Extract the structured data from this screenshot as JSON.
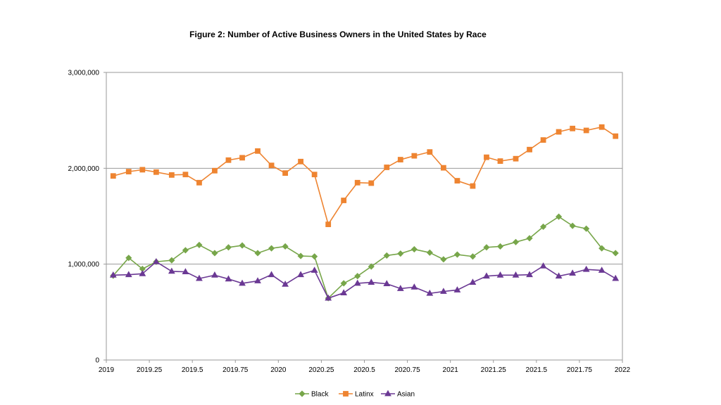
{
  "chart_data": {
    "type": "line",
    "title": "Figure 2: Number of Active Business Owners in the United States by Race",
    "xlabel": "",
    "ylabel": "",
    "xlim": [
      2019,
      2022
    ],
    "ylim": [
      0,
      3000000
    ],
    "x_ticks": [
      {
        "value": 2019,
        "label": "2019"
      },
      {
        "value": 2019.25,
        "label": "2019.25"
      },
      {
        "value": 2019.5,
        "label": "2019.5"
      },
      {
        "value": 2019.75,
        "label": "2019.75"
      },
      {
        "value": 2020,
        "label": "2020"
      },
      {
        "value": 2020.25,
        "label": "2020.25"
      },
      {
        "value": 2020.5,
        "label": "2020.5"
      },
      {
        "value": 2020.75,
        "label": "2020.75"
      },
      {
        "value": 2021,
        "label": "2021"
      },
      {
        "value": 2021.25,
        "label": "2021.25"
      },
      {
        "value": 2021.5,
        "label": "2021.5"
      },
      {
        "value": 2021.75,
        "label": "2021.75"
      },
      {
        "value": 2022,
        "label": "2022"
      }
    ],
    "y_ticks": [
      {
        "value": 0,
        "label": "0"
      },
      {
        "value": 1000000,
        "label": "1,000,000"
      },
      {
        "value": 2000000,
        "label": "2,000,000"
      },
      {
        "value": 3000000,
        "label": "3,000,000"
      }
    ],
    "grid": "horizontal",
    "legend_position": "bottom-center",
    "x": [
      2019.04,
      2019.13,
      2019.21,
      2019.29,
      2019.38,
      2019.46,
      2019.54,
      2019.63,
      2019.71,
      2019.79,
      2019.88,
      2019.96,
      2020.04,
      2020.13,
      2020.21,
      2020.29,
      2020.38,
      2020.46,
      2020.54,
      2020.63,
      2020.71,
      2020.79,
      2020.88,
      2020.96,
      2021.04,
      2021.13,
      2021.21,
      2021.29,
      2021.38,
      2021.46,
      2021.54,
      2021.63,
      2021.71,
      2021.79,
      2021.88,
      2021.96
    ],
    "series": [
      {
        "name": "Black",
        "color": "#77a64a",
        "marker": "diamond",
        "values": [
          880000,
          1065000,
          950000,
          1025000,
          1040000,
          1145000,
          1200000,
          1115000,
          1175000,
          1195000,
          1115000,
          1165000,
          1185000,
          1085000,
          1080000,
          645000,
          800000,
          875000,
          975000,
          1090000,
          1110000,
          1155000,
          1120000,
          1050000,
          1100000,
          1080000,
          1175000,
          1185000,
          1230000,
          1270000,
          1390000,
          1495000,
          1400000,
          1370000,
          1165000,
          1115000
        ]
      },
      {
        "name": "Latinx",
        "color": "#ee8431",
        "marker": "square",
        "values": [
          1920000,
          1965000,
          1985000,
          1960000,
          1930000,
          1935000,
          1850000,
          1975000,
          2085000,
          2110000,
          2180000,
          2030000,
          1950000,
          2070000,
          1935000,
          1415000,
          1665000,
          1850000,
          1845000,
          2010000,
          2090000,
          2130000,
          2170000,
          2005000,
          1870000,
          1815000,
          2115000,
          2075000,
          2100000,
          2195000,
          2295000,
          2380000,
          2415000,
          2395000,
          2430000,
          2335000
        ]
      },
      {
        "name": "Asian",
        "color": "#6b3994",
        "marker": "triangle",
        "values": [
          885000,
          890000,
          900000,
          1025000,
          925000,
          920000,
          850000,
          885000,
          845000,
          800000,
          825000,
          890000,
          790000,
          890000,
          935000,
          645000,
          700000,
          800000,
          810000,
          795000,
          745000,
          760000,
          695000,
          715000,
          730000,
          810000,
          875000,
          885000,
          885000,
          890000,
          980000,
          875000,
          905000,
          945000,
          935000,
          850000
        ]
      }
    ]
  }
}
